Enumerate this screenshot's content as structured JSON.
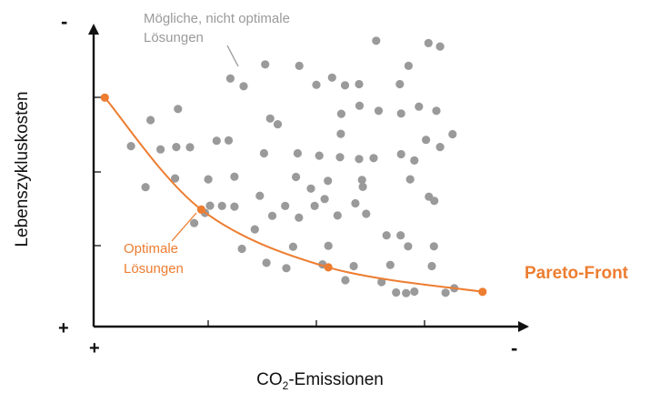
{
  "chart_data": {
    "type": "scatter",
    "axes": {
      "ylabel": "Lebenszykluskosten",
      "xlabel_main": "CO",
      "xlabel_sub": "2",
      "xlabel_rest": "-Emissionen",
      "corner_y_top": "-",
      "corner_origin_y": "+",
      "corner_origin_x": "+",
      "corner_x_right": "-",
      "xlim": [
        0,
        100
      ],
      "ylim": [
        0,
        100
      ],
      "grid": false
    },
    "annotations": {
      "suboptimal_line1": "Mögliche, nicht optimale",
      "suboptimal_line2": "Lösungen",
      "optimal_line1": "Optimale",
      "optimal_line2": "Lösungen",
      "pareto_label": "Pareto-Front"
    },
    "colors": {
      "axis": "#111111",
      "dots": "#9a9a9a",
      "pareto": "#ed7d31",
      "suboptimal_text": "#9a9a9a"
    },
    "series": [
      {
        "role": "suboptimal",
        "points": [
          [
            68.0,
            95.5
          ],
          [
            80.6,
            94.7
          ],
          [
            83.4,
            93.6
          ],
          [
            49.5,
            87.1
          ],
          [
            41.3,
            87.6
          ],
          [
            36.1,
            80.3
          ],
          [
            75.8,
            87.1
          ],
          [
            73.7,
            81.0
          ],
          [
            32.9,
            82.9
          ],
          [
            57.4,
            83.2
          ],
          [
            53.6,
            80.8
          ],
          [
            60.5,
            80.6
          ],
          [
            63.9,
            81.0
          ],
          [
            64.0,
            73.8
          ],
          [
            78.3,
            73.5
          ],
          [
            82.5,
            72.1
          ],
          [
            68.6,
            72.1
          ],
          [
            74.0,
            71.2
          ],
          [
            59.6,
            71.1
          ],
          [
            42.5,
            69.5
          ],
          [
            20.3,
            72.7
          ],
          [
            13.7,
            69.0
          ],
          [
            44.3,
            67.6
          ],
          [
            59.5,
            64.4
          ],
          [
            86.4,
            64.3
          ],
          [
            80.0,
            62.4
          ],
          [
            83.4,
            60.0
          ],
          [
            9.0,
            60.3
          ],
          [
            16.1,
            59.2
          ],
          [
            19.9,
            60.0
          ],
          [
            23.2,
            59.9
          ],
          [
            29.6,
            62.1
          ],
          [
            32.5,
            62.2
          ],
          [
            41.0,
            57.9
          ],
          [
            49.1,
            57.9
          ],
          [
            67.4,
            56.3
          ],
          [
            63.9,
            56.0
          ],
          [
            54.3,
            57.1
          ],
          [
            59.3,
            56.6
          ],
          [
            74.0,
            57.6
          ],
          [
            77.2,
            55.5
          ],
          [
            19.6,
            49.5
          ],
          [
            33.9,
            50.1
          ],
          [
            48.7,
            50.0
          ],
          [
            56.4,
            48.7
          ],
          [
            64.6,
            49.0
          ],
          [
            76.2,
            49.2
          ],
          [
            12.5,
            46.6
          ],
          [
            27.6,
            49.2
          ],
          [
            52.3,
            46.1
          ],
          [
            55.6,
            42.6
          ],
          [
            64.8,
            46.7
          ],
          [
            40.0,
            43.7
          ],
          [
            80.7,
            43.4
          ],
          [
            28.0,
            40.4
          ],
          [
            30.9,
            40.3
          ],
          [
            33.9,
            40.1
          ],
          [
            46.1,
            40.3
          ],
          [
            63.0,
            41.2
          ],
          [
            53.2,
            40.3
          ],
          [
            26.8,
            38.0
          ],
          [
            82.0,
            42.0
          ],
          [
            43.0,
            37.0
          ],
          [
            58.7,
            37.1
          ],
          [
            65.6,
            37.7
          ],
          [
            49.4,
            36.4
          ],
          [
            38.8,
            32.5
          ],
          [
            24.2,
            34.6
          ],
          [
            70.5,
            30.5
          ],
          [
            73.9,
            30.5
          ],
          [
            35.7,
            26.0
          ],
          [
            48.0,
            26.7
          ],
          [
            56.5,
            27.0
          ],
          [
            75.7,
            26.8
          ],
          [
            81.9,
            26.8
          ],
          [
            41.6,
            21.3
          ],
          [
            46.4,
            19.5
          ],
          [
            55.1,
            20.8
          ],
          [
            62.6,
            20.2
          ],
          [
            71.4,
            20.6
          ],
          [
            81.4,
            20.2
          ],
          [
            60.6,
            15.5
          ],
          [
            69.3,
            14.9
          ],
          [
            77.2,
            11.7
          ],
          [
            72.8,
            11.4
          ],
          [
            75.2,
            11.2
          ],
          [
            84.7,
            11.3
          ],
          [
            86.8,
            12.8
          ]
        ]
      },
      {
        "role": "pareto",
        "name": "Pareto-Front",
        "points": [
          [
            2.7,
            76.5
          ],
          [
            25.9,
            39.1
          ],
          [
            56.5,
            19.8
          ],
          [
            93.6,
            11.6
          ]
        ]
      }
    ]
  }
}
